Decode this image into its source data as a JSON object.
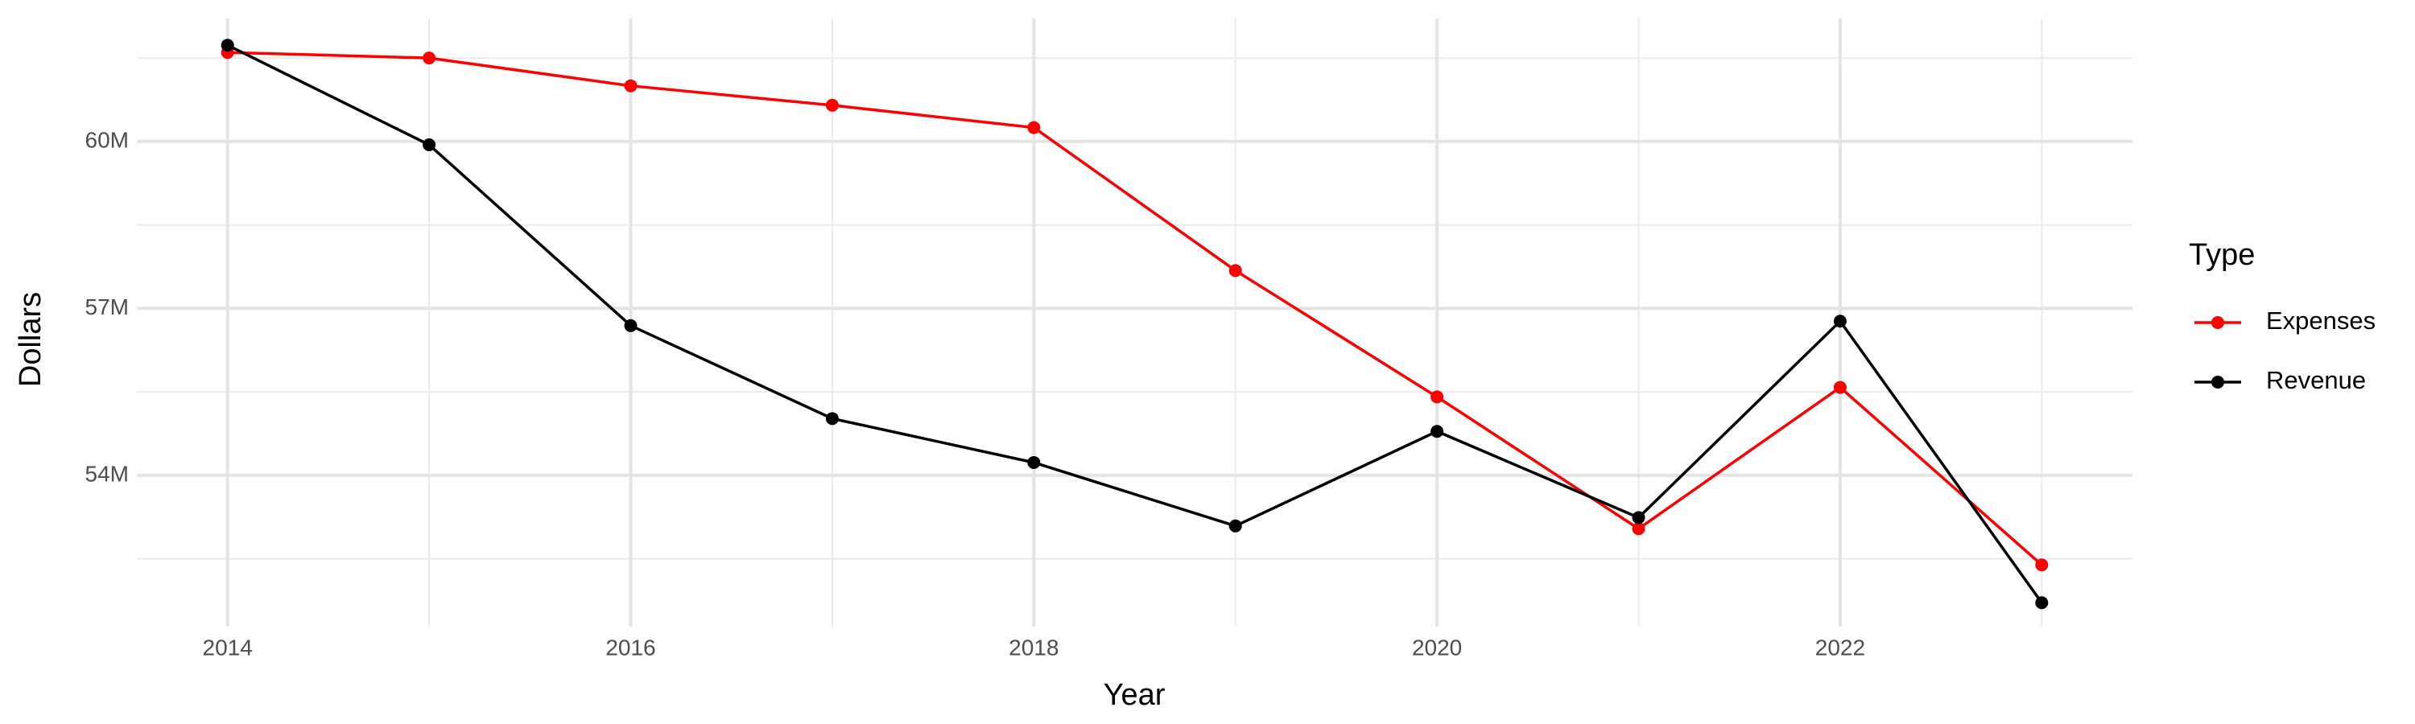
{
  "chart_data": {
    "type": "line",
    "x_label": "Year",
    "y_label": "Dollars",
    "legend_title": "Type",
    "legend_position": "right",
    "x": [
      2014,
      2015,
      2016,
      2017,
      2018,
      2019,
      2020,
      2021,
      2022,
      2023
    ],
    "series": [
      {
        "name": "Expenses",
        "color": "#ff0000",
        "values": [
          61600000,
          61500000,
          61000000,
          60650000,
          60250000,
          57680000,
          55410000,
          53040000,
          55580000,
          52390000
        ]
      },
      {
        "name": "Revenue",
        "color": "#000000",
        "values": [
          61730000,
          59940000,
          56690000,
          55020000,
          54230000,
          53090000,
          54790000,
          53240000,
          56770000,
          51710000
        ]
      }
    ],
    "xlim": [
      2013.55,
      2023.45
    ],
    "xticks": [
      2014,
      2016,
      2018,
      2020,
      2022
    ],
    "ylim": [
      51280000,
      62210000
    ],
    "yticks": [
      {
        "value": 54000000,
        "label": "54M"
      },
      {
        "value": 57000000,
        "label": "57M"
      },
      {
        "value": 60000000,
        "label": "60M"
      }
    ],
    "grid": true
  }
}
